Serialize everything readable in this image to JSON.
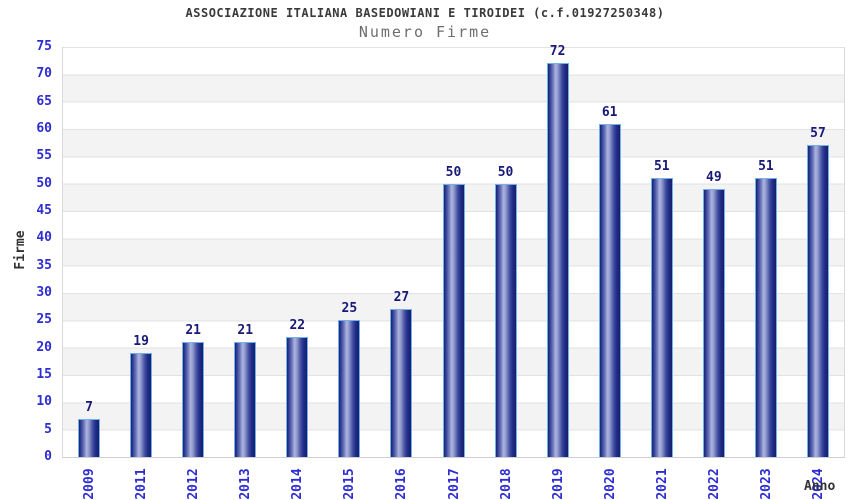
{
  "chart_data": {
    "type": "bar",
    "title": "ASSOCIAZIONE ITALIANA BASEDOWIANI E TIROIDEI (c.f.01927250348)",
    "subtitle": "Numero Firme",
    "xlabel": "Anno",
    "ylabel": "Firme",
    "categories": [
      "2009",
      "2011",
      "2012",
      "2013",
      "2014",
      "2015",
      "2016",
      "2017",
      "2018",
      "2019",
      "2020",
      "2021",
      "2022",
      "2023",
      "2024"
    ],
    "values": [
      7,
      19,
      21,
      21,
      22,
      25,
      27,
      50,
      50,
      72,
      61,
      51,
      49,
      51,
      57
    ],
    "ylim": [
      0,
      75
    ],
    "ytick_step": 5,
    "grid": "horizontal-bands",
    "legend": "none",
    "colors": {
      "bar_dark": "#1a2578",
      "bar_light": "#aeb5e0",
      "bar_outline": "#74b0e8",
      "axis_tick_label": "#2d2dd2",
      "value_label": "#181878",
      "title": "#3a3a3a",
      "subtitle": "#6e6e6e",
      "band": "#f3f3f3",
      "gridline": "#e2e2e2"
    }
  }
}
